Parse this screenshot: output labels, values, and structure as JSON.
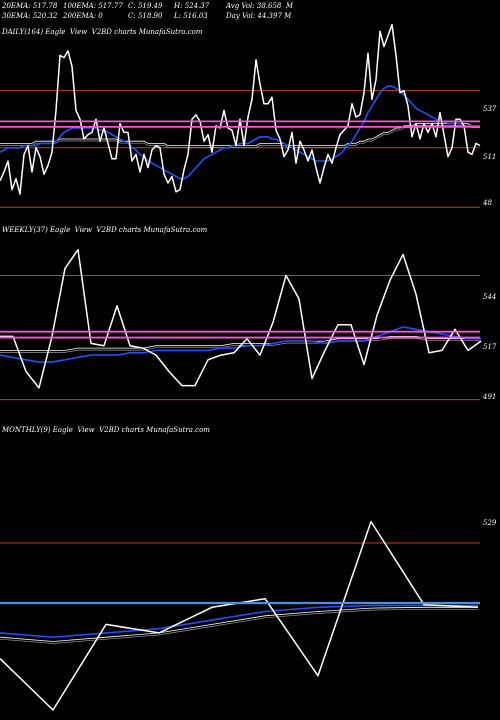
{
  "header": {
    "row1": [
      "20EMA: 517.78",
      "100EMA: 517.77",
      "C: 519.49",
      "H: 524.37",
      "Avg Vol: 38.658  M"
    ],
    "row2": [
      "30EMA: 520.32",
      "200EMA: 0",
      "C: 518.90",
      "L: 516.03",
      "Day Vol: 44.397 M"
    ]
  },
  "colors": {
    "background": "#000000",
    "price_line": "#ffffff",
    "ema_short": "#1e50ff",
    "ema_long": "#ffffff",
    "pivot_line": "#ff4fd8",
    "reference_line": "#c1440e",
    "monthly_pivot": "#4a90e2"
  },
  "chart_data": [
    {
      "type": "line",
      "panel": "daily",
      "title": "DAILY(164) Eagle  View  V2BD charts MunafaSutra.com",
      "y_tick_labels": [
        "537",
        "511",
        "48"
      ],
      "ylim": [
        480,
        560
      ],
      "reference_levels": [
        537,
        511,
        484
      ],
      "pivot_levels": [
        523,
        520.5
      ],
      "x": [
        0,
        4,
        8,
        12,
        16,
        20,
        24,
        28,
        32,
        36,
        40,
        44,
        48,
        52,
        56,
        60,
        64,
        68,
        72,
        76,
        80,
        84,
        88,
        92,
        96,
        100,
        104,
        108,
        112,
        116,
        120,
        124,
        128,
        132,
        136,
        140,
        144,
        148,
        152,
        156,
        160,
        164,
        168,
        172,
        176,
        180,
        184,
        188,
        192,
        196,
        200,
        204,
        208,
        212,
        216,
        220,
        224,
        228,
        232,
        236,
        240,
        244,
        248,
        252,
        256,
        260,
        264,
        268,
        272,
        276,
        280,
        284,
        288,
        292,
        296,
        300,
        304,
        308,
        312,
        316,
        320,
        324,
        328,
        332,
        336,
        340,
        344,
        348,
        352,
        356,
        360,
        364,
        368,
        372,
        376,
        380,
        384,
        388,
        392,
        396,
        400,
        404,
        408,
        412,
        416,
        420,
        424,
        428,
        432,
        436,
        440,
        444,
        448,
        452,
        456,
        460,
        464,
        468,
        472,
        476,
        480
      ],
      "series": [
        {
          "name": "",
          "role": "price",
          "values": [
            496,
            500,
            505,
            492,
            497,
            490,
            508,
            512,
            500,
            511,
            507,
            499,
            503,
            509,
            528,
            553,
            552,
            555,
            548,
            528,
            524,
            515,
            517,
            518,
            524,
            514,
            520,
            513,
            506,
            506,
            522,
            518,
            518,
            505,
            508,
            500,
            508,
            502,
            510,
            512,
            511,
            499,
            495,
            498,
            491,
            492,
            501,
            508,
            524,
            526,
            523,
            514,
            517,
            509,
            521,
            520,
            528,
            520,
            519,
            512,
            524,
            512,
            525,
            533,
            551,
            540,
            531,
            531,
            534,
            519,
            515,
            507,
            510,
            518,
            504,
            514,
            510,
            505,
            510,
            502,
            495,
            502,
            508,
            504,
            511,
            517,
            519,
            521,
            531,
            525,
            526,
            536,
            554,
            533,
            542,
            564,
            557,
            562,
            567,
            553,
            536,
            537,
            530,
            516,
            522,
            515,
            522,
            518,
            522,
            516,
            527,
            517,
            507,
            511,
            524,
            524,
            521,
            509,
            508,
            513,
            512
          ]
        },
        {
          "name": "",
          "role": "ema-short",
          "values": [
            509,
            510,
            511,
            511,
            511,
            511,
            512,
            512,
            512,
            512,
            513,
            513,
            513,
            513,
            514,
            516,
            518,
            519,
            520,
            520,
            520,
            520,
            520,
            520,
            520,
            519,
            519,
            518,
            517,
            516,
            515,
            514,
            513,
            511,
            510,
            508,
            507,
            505,
            504,
            503,
            502,
            501,
            500,
            499,
            498,
            497,
            497,
            498,
            500,
            502,
            504,
            506,
            507,
            508,
            509,
            510,
            511,
            511,
            512,
            512,
            513,
            513,
            513,
            514,
            515,
            516,
            516,
            516,
            515,
            515,
            514,
            513,
            512,
            511,
            510,
            509,
            508,
            507,
            506,
            505,
            505,
            505,
            505,
            506,
            507,
            508,
            510,
            512,
            514,
            517,
            520,
            523,
            527,
            530,
            533,
            536,
            538,
            539,
            539,
            538,
            537,
            535,
            533,
            531,
            529,
            528,
            527,
            526,
            525,
            524,
            523,
            523,
            522,
            522,
            522,
            522,
            521,
            521,
            521,
            521,
            521
          ]
        },
        {
          "name": "",
          "role": "ema-long",
          "values": [
            513,
            513,
            513,
            513,
            513,
            513,
            513,
            513,
            513,
            514,
            514,
            514,
            514,
            514,
            514,
            515,
            515,
            515,
            515,
            515,
            515,
            515,
            515,
            515,
            515,
            515,
            515,
            515,
            515,
            515,
            514,
            514,
            514,
            514,
            514,
            514,
            514,
            513,
            513,
            513,
            513,
            513,
            512,
            512,
            512,
            512,
            512,
            512,
            512,
            512,
            512,
            512,
            512,
            512,
            512,
            512,
            512,
            512,
            512,
            512,
            512,
            512,
            512,
            512,
            512,
            513,
            513,
            513,
            513,
            513,
            513,
            513,
            512,
            512,
            512,
            512,
            512,
            512,
            512,
            512,
            512,
            512,
            512,
            512,
            512,
            512,
            512,
            513,
            513,
            513,
            514,
            514,
            515,
            515,
            516,
            517,
            518,
            518,
            519,
            520,
            520,
            521,
            521,
            521,
            522,
            522,
            522,
            522,
            522,
            522,
            522,
            522,
            522,
            522,
            522,
            522,
            522,
            522,
            521,
            521,
            521
          ]
        }
      ]
    },
    {
      "type": "line",
      "panel": "weekly",
      "title": "WEEKLY(37) Eagle  View  V2BD charts MunafaSutra.com",
      "y_tick_labels": [
        "544",
        "517",
        "491"
      ],
      "ylim": [
        484,
        560
      ],
      "reference_levels": [
        544,
        491
      ],
      "pivot_levels": [
        520,
        517.5
      ],
      "x": [
        0,
        13,
        26,
        39,
        52,
        65,
        78,
        91,
        104,
        117,
        130,
        143,
        156,
        169,
        182,
        195,
        208,
        221,
        234,
        247,
        260,
        273,
        286,
        299,
        312,
        325,
        338,
        351,
        364,
        377,
        390,
        403,
        416,
        429,
        442,
        455,
        468,
        481
      ],
      "series": [
        {
          "name": "",
          "role": "price",
          "values": [
            518,
            518,
            503,
            496,
            518,
            547,
            555,
            515,
            514,
            531,
            514,
            513,
            510,
            503,
            497,
            497,
            508,
            510,
            511,
            517,
            510,
            524,
            544,
            534,
            500,
            512,
            523,
            523,
            506,
            527,
            542,
            553,
            536,
            511,
            512,
            521,
            512,
            516
          ]
        },
        {
          "name": "",
          "role": "ema-short",
          "values": [
            510,
            509,
            508,
            507,
            507,
            508,
            509,
            510,
            510,
            510,
            511,
            511,
            512,
            512,
            512,
            512,
            512,
            513,
            513,
            514,
            514,
            515,
            516,
            516,
            516,
            515,
            516,
            516,
            516,
            518,
            520,
            522,
            521,
            520,
            519,
            518,
            517,
            517
          ]
        },
        {
          "name": "",
          "role": "ema-long",
          "values": [
            512,
            512,
            512,
            512,
            512,
            512,
            513,
            513,
            513,
            513,
            513,
            513,
            514,
            514,
            514,
            514,
            514,
            514,
            515,
            515,
            515,
            515,
            516,
            516,
            516,
            516,
            517,
            517,
            517,
            517,
            518,
            518,
            518,
            517,
            517,
            517,
            517,
            517
          ]
        }
      ]
    },
    {
      "type": "line",
      "panel": "monthly",
      "title": "MONTHLY(9) Eagle  View  V2BD charts MunafaSutra.com",
      "y_tick_labels": [
        "529"
      ],
      "ylim": [
        508,
        540
      ],
      "reference_levels": [
        527.5
      ],
      "pivot_levels": [
        520.5
      ],
      "x": [
        0,
        53,
        106,
        159,
        212,
        265,
        318,
        371,
        424,
        478
      ],
      "series": [
        {
          "name": "",
          "role": "price",
          "values": [
            514,
            508,
            518,
            517,
            520,
            521,
            512,
            530,
            520.3,
            520
          ]
        },
        {
          "name": "",
          "role": "ema-short",
          "values": [
            517,
            516.5,
            517,
            517.5,
            518.5,
            519.5,
            520,
            520.2,
            520.2,
            520.2
          ]
        },
        {
          "name": "",
          "role": "ema-long",
          "values": [
            516.5,
            516,
            516.5,
            517,
            518,
            519,
            519.5,
            519.9,
            520,
            520
          ]
        }
      ]
    }
  ]
}
